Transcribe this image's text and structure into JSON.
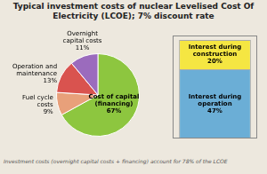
{
  "chart_data": [
    {
      "type": "pie",
      "title": "Typical investment costs of nuclear Levelised Cost Of\nElectricity (LCOE); 7% discount rate",
      "categories": [
        "Cost of capital\n(financing)\n67%",
        "Fuel cycle\ncosts\n9%",
        "Operation and\nmaintenance\n13%",
        "Overnight\ncapital costs\n11%"
      ],
      "values": [
        67,
        9,
        13,
        11
      ],
      "colors": [
        "#8dc63f",
        "#e8a07a",
        "#d9534f",
        "#9b6bbd"
      ],
      "data_labels": true,
      "annotations": [
        "Investment costs (overnight capital costs + financing) account for 78% of the LCOE"
      ]
    },
    {
      "type": "bar",
      "stacked": true,
      "categories": [
        null
      ],
      "series": [
        {
          "name": "Interest during\noperation\n47%",
          "color": "#6baed6",
          "values": [
            47
          ]
        },
        {
          "name": "Interest during\nconstruction\n20%",
          "color": "#f5e642",
          "values": [
            20
          ]
        }
      ],
      "ylim": [
        0,
        70
      ],
      "tick_labels": false,
      "grid": false,
      "data_labels": true
    }
  ]
}
